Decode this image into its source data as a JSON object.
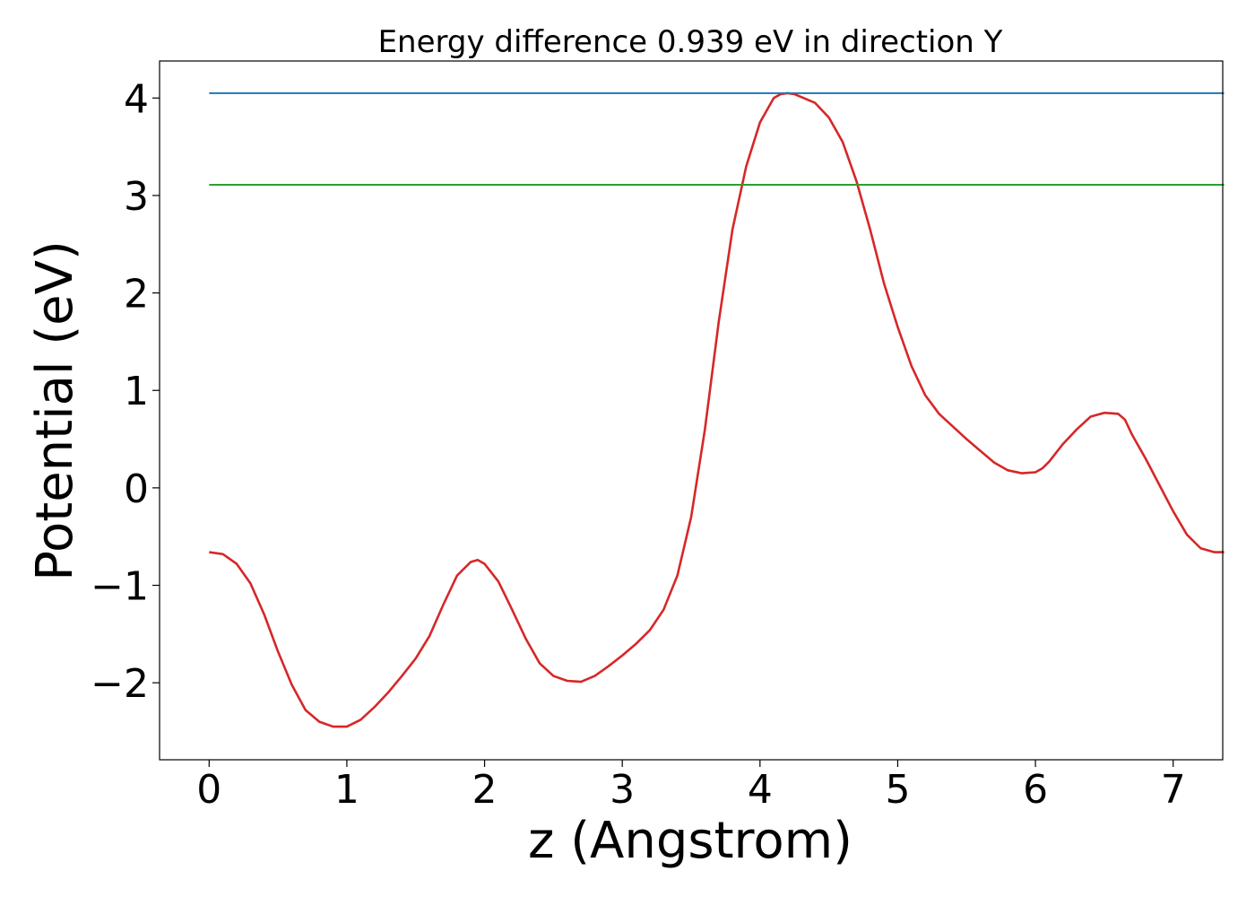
{
  "chart_data": {
    "type": "line",
    "title": "Energy difference 0.939 eV in direction Y",
    "xlabel": "z (Angstrom)",
    "ylabel": "Potential (eV)",
    "xlim": [
      -0.36,
      7.36
    ],
    "ylim": [
      -2.79,
      4.38
    ],
    "xticks": [
      0,
      1,
      2,
      3,
      4,
      5,
      6,
      7
    ],
    "yticks": [
      -2,
      -1,
      0,
      1,
      2,
      3,
      4
    ],
    "xtick_labels": [
      "0",
      "1",
      "2",
      "3",
      "4",
      "5",
      "6",
      "7"
    ],
    "ytick_labels": [
      "−2",
      "−1",
      "0",
      "1",
      "2",
      "3",
      "4"
    ],
    "grid": false,
    "series": [
      {
        "color": "#d62728",
        "x": [
          0.0,
          0.1,
          0.2,
          0.3,
          0.4,
          0.5,
          0.6,
          0.7,
          0.8,
          0.9,
          1.0,
          1.1,
          1.2,
          1.3,
          1.4,
          1.5,
          1.6,
          1.7,
          1.8,
          1.9,
          1.95,
          2.0,
          2.1,
          2.2,
          2.3,
          2.4,
          2.5,
          2.6,
          2.7,
          2.8,
          2.9,
          3.0,
          3.1,
          3.2,
          3.3,
          3.4,
          3.5,
          3.6,
          3.7,
          3.8,
          3.9,
          4.0,
          4.1,
          4.15,
          4.2,
          4.25,
          4.3,
          4.4,
          4.5,
          4.6,
          4.7,
          4.8,
          4.9,
          5.0,
          5.1,
          5.2,
          5.3,
          5.4,
          5.5,
          5.6,
          5.7,
          5.8,
          5.9,
          6.0,
          6.05,
          6.1,
          6.2,
          6.3,
          6.4,
          6.5,
          6.6,
          6.65,
          6.7,
          6.8,
          6.9,
          7.0,
          7.1,
          7.2,
          7.3,
          7.37
        ],
        "y": [
          -0.66,
          -0.68,
          -0.78,
          -0.98,
          -1.3,
          -1.68,
          -2.02,
          -2.28,
          -2.4,
          -2.45,
          -2.45,
          -2.38,
          -2.25,
          -2.1,
          -1.93,
          -1.75,
          -1.52,
          -1.2,
          -0.9,
          -0.76,
          -0.74,
          -0.78,
          -0.96,
          -1.25,
          -1.55,
          -1.8,
          -1.93,
          -1.98,
          -1.99,
          -1.93,
          -1.83,
          -1.72,
          -1.6,
          -1.46,
          -1.25,
          -0.9,
          -0.3,
          0.6,
          1.7,
          2.65,
          3.3,
          3.75,
          4.0,
          4.04,
          4.05,
          4.04,
          4.01,
          3.95,
          3.8,
          3.55,
          3.15,
          2.65,
          2.1,
          1.65,
          1.25,
          0.95,
          0.76,
          0.63,
          0.5,
          0.38,
          0.26,
          0.18,
          0.15,
          0.16,
          0.2,
          0.27,
          0.45,
          0.6,
          0.73,
          0.77,
          0.76,
          0.7,
          0.55,
          0.3,
          0.03,
          -0.24,
          -0.48,
          -0.62,
          -0.66,
          -0.66
        ]
      },
      {
        "color": "#1f77b4",
        "x": [
          0.0,
          7.37
        ],
        "y": [
          4.05,
          4.05
        ]
      },
      {
        "color": "#2ca02c",
        "x": [
          0.0,
          7.37
        ],
        "y": [
          3.11,
          3.11
        ]
      }
    ]
  }
}
